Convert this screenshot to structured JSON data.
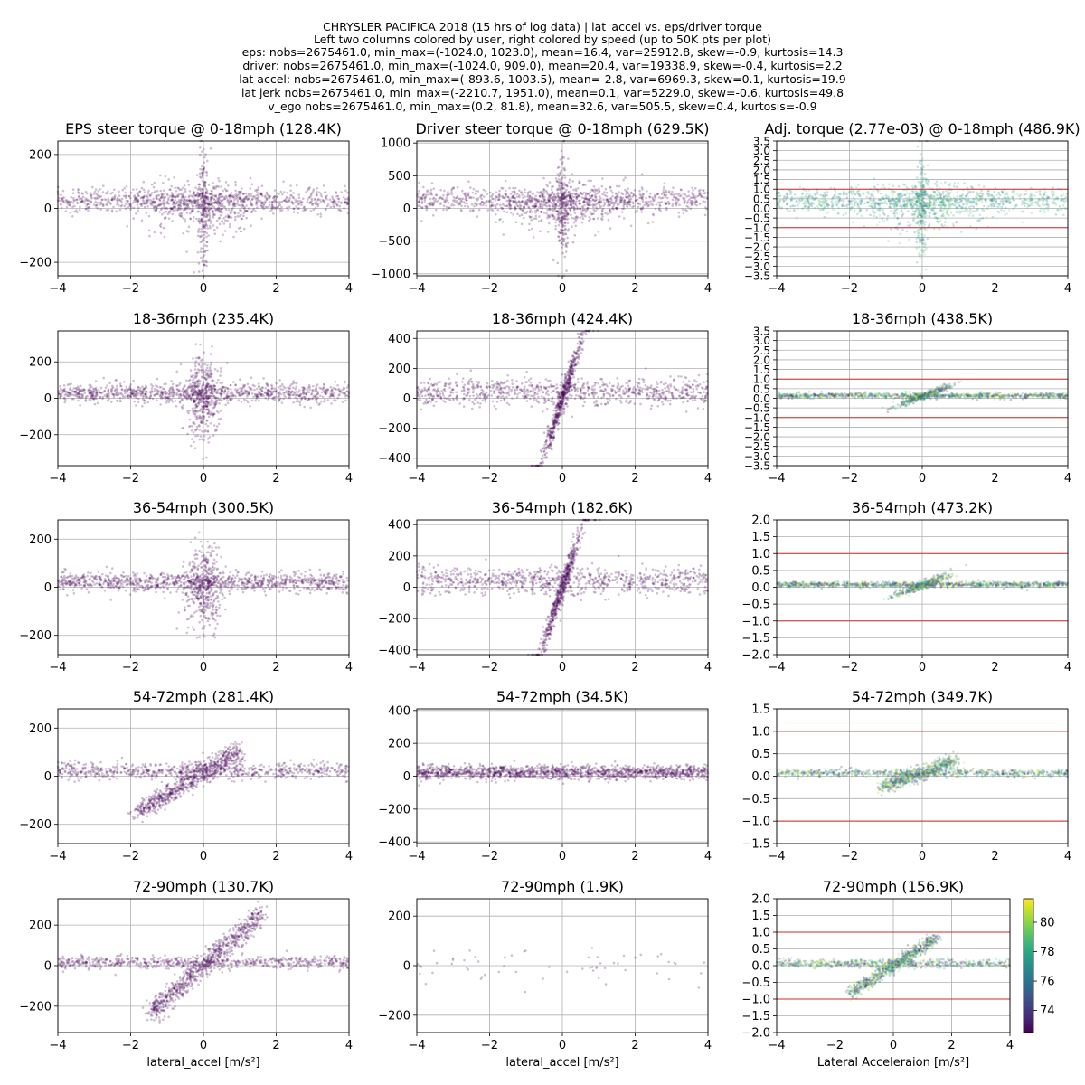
{
  "figure": {
    "header_lines": [
      "CHRYSLER PACIFICA 2018 (15 hrs of log data) | lat_accel vs. eps/driver torque",
      "Left two columns colored by user, right colored by speed (up to 50K pts per plot)",
      "eps: nobs=2675461.0, min_max=(-1024.0, 1023.0), mean=16.4, var=25912.8, skew=-0.9, kurtosis=14.3",
      "driver: nobs=2675461.0, min_max=(-1024.0, 909.0), mean=20.4, var=19338.9, skew=-0.4, kurtosis=2.2",
      "lat accel: nobs=2675461.0, min_max=(-893.6, 1003.5), mean=-2.8, var=6969.3, skew=0.1, kurtosis=19.9",
      "lat jerk nobs=2675461.0, min_max=(-2210.7, 1951.0), mean=0.1, var=5229.0, skew=-0.6, kurtosis=49.8",
      "v_ego nobs=2675461.0, min_max=(0.2, 81.8), mean=32.6, var=505.5, skew=0.4, kurtosis=-0.9"
    ],
    "colors": {
      "user": "#440154",
      "reference_line": "#d62728",
      "grid": "#b0b0b0"
    }
  },
  "colorbar": {
    "ticks": [
      "74",
      "76",
      "78",
      "80"
    ],
    "range": [
      72.5,
      81.6
    ],
    "colormap": "viridis"
  },
  "chart_data": [
    {
      "type": "scatter",
      "title": "EPS steer torque @ 0-18mph (128.4K)",
      "xlabel": "",
      "ylabel": "",
      "xlim": [
        -4,
        4
      ],
      "ylim": [
        -250,
        250
      ],
      "yticks": [
        -200,
        0,
        200
      ],
      "xticks": [
        -4,
        -2,
        0,
        2,
        4
      ],
      "color": "user",
      "pattern": "low"
    },
    {
      "type": "scatter",
      "title": "Driver steer torque @ 0-18mph (629.5K)",
      "xlabel": "",
      "ylabel": "",
      "xlim": [
        -4,
        4
      ],
      "ylim": [
        -1030,
        1030
      ],
      "yticks": [
        -1000,
        -500,
        0,
        500,
        1000
      ],
      "xticks": [
        -4,
        -2,
        0,
        2,
        4
      ],
      "color": "user",
      "pattern": "low"
    },
    {
      "type": "scatter",
      "title": "Adj. torque (2.77e-03) @ 0-18mph (486.9K)",
      "xlabel": "",
      "ylabel": "",
      "xlim": [
        -4,
        4
      ],
      "ylim": [
        -3.5,
        3.5
      ],
      "yticks": [
        "-3.5",
        "-3.0",
        "-2.5",
        "-2.0",
        "-1.5",
        "-1.0",
        "-0.5",
        "0.0",
        "0.5",
        "1.0",
        "1.5",
        "2.0",
        "2.5",
        "3.0",
        "3.5"
      ],
      "xticks": [
        -4,
        -2,
        0,
        2,
        4
      ],
      "hlines": [
        -1,
        1
      ],
      "color": "speed",
      "pattern": "low"
    },
    {
      "type": "scatter",
      "title": "18-36mph (235.4K)",
      "xlabel": "",
      "ylabel": "",
      "xlim": [
        -4,
        4
      ],
      "ylim": [
        -370,
        370
      ],
      "yticks": [
        -200,
        0,
        200
      ],
      "xticks": [
        -4,
        -2,
        0,
        2,
        4
      ],
      "color": "user",
      "pattern": "mid_eps"
    },
    {
      "type": "scatter",
      "title": "18-36mph (424.4K)",
      "xlabel": "",
      "ylabel": "",
      "xlim": [
        -4,
        4
      ],
      "ylim": [
        -450,
        450
      ],
      "yticks": [
        -400,
        -200,
        0,
        200,
        400
      ],
      "xticks": [
        -4,
        -2,
        0,
        2,
        4
      ],
      "color": "user",
      "pattern": "mid_drv"
    },
    {
      "type": "scatter",
      "title": "18-36mph (438.5K)",
      "xlabel": "",
      "ylabel": "",
      "xlim": [
        -4,
        4
      ],
      "ylim": [
        -3.5,
        3.5
      ],
      "yticks": [
        "-3.5",
        "-3.0",
        "-2.5",
        "-2.0",
        "-1.5",
        "-1.0",
        "-0.5",
        "0.0",
        "0.5",
        "1.0",
        "1.5",
        "2.0",
        "2.5",
        "3.0",
        "3.5"
      ],
      "xticks": [
        -4,
        -2,
        0,
        2,
        4
      ],
      "hlines": [
        -1,
        1
      ],
      "color": "speed",
      "pattern": "mid_adj"
    },
    {
      "type": "scatter",
      "title": "36-54mph (300.5K)",
      "xlabel": "",
      "ylabel": "",
      "xlim": [
        -4,
        4
      ],
      "ylim": [
        -280,
        280
      ],
      "yticks": [
        -200,
        0,
        200
      ],
      "xticks": [
        -4,
        -2,
        0,
        2,
        4
      ],
      "color": "user",
      "pattern": "mid_eps"
    },
    {
      "type": "scatter",
      "title": "36-54mph (182.6K)",
      "xlabel": "",
      "ylabel": "",
      "xlim": [
        -4,
        4
      ],
      "ylim": [
        -430,
        430
      ],
      "yticks": [
        -400,
        -200,
        0,
        200,
        400
      ],
      "xticks": [
        -4,
        -2,
        0,
        2,
        4
      ],
      "color": "user",
      "pattern": "mid_drv"
    },
    {
      "type": "scatter",
      "title": "36-54mph (473.2K)",
      "xlabel": "",
      "ylabel": "",
      "xlim": [
        -4,
        4
      ],
      "ylim": [
        -2,
        2
      ],
      "yticks": [
        "-2.0",
        "-1.5",
        "-1.0",
        "-0.5",
        "0.0",
        "0.5",
        "1.0",
        "1.5",
        "2.0"
      ],
      "xticks": [
        -4,
        -2,
        0,
        2,
        4
      ],
      "hlines": [
        -1,
        1
      ],
      "color": "speed",
      "pattern": "mid_adj"
    },
    {
      "type": "scatter",
      "title": "54-72mph (281.4K)",
      "xlabel": "",
      "ylabel": "",
      "xlim": [
        -4,
        4
      ],
      "ylim": [
        -280,
        280
      ],
      "yticks": [
        -200,
        0,
        200
      ],
      "xticks": [
        -4,
        -2,
        0,
        2,
        4
      ],
      "color": "user",
      "pattern": "high_eps"
    },
    {
      "type": "scatter",
      "title": "54-72mph (34.5K)",
      "xlabel": "",
      "ylabel": "",
      "xlim": [
        -4,
        4
      ],
      "ylim": [
        -410,
        410
      ],
      "yticks": [
        -400,
        -200,
        0,
        200,
        400
      ],
      "xticks": [
        -4,
        -2,
        0,
        2,
        4
      ],
      "color": "user",
      "pattern": "band"
    },
    {
      "type": "scatter",
      "title": "54-72mph (349.7K)",
      "xlabel": "",
      "ylabel": "",
      "xlim": [
        -4,
        4
      ],
      "ylim": [
        -1.5,
        1.5
      ],
      "yticks": [
        "-1.5",
        "-1.0",
        "-0.5",
        "0.0",
        "0.5",
        "1.0",
        "1.5"
      ],
      "xticks": [
        -4,
        -2,
        0,
        2,
        4
      ],
      "hlines": [
        -1,
        1
      ],
      "color": "speed",
      "pattern": "high_adj"
    },
    {
      "type": "scatter",
      "title": "72-90mph (130.7K)",
      "xlabel": "lateral_accel [m/s²]",
      "ylabel": "",
      "xlim": [
        -4,
        4
      ],
      "ylim": [
        -330,
        330
      ],
      "yticks": [
        -200,
        0,
        200
      ],
      "xticks": [
        -4,
        -2,
        0,
        2,
        4
      ],
      "color": "user",
      "pattern": "vhigh_eps"
    },
    {
      "type": "scatter",
      "title": "72-90mph (1.9K)",
      "xlabel": "lateral_accel [m/s²]",
      "ylabel": "",
      "xlim": [
        -4,
        4
      ],
      "ylim": [
        -270,
        270
      ],
      "yticks": [
        -200,
        0,
        200
      ],
      "xticks": [
        -4,
        -2,
        0,
        2,
        4
      ],
      "color": "user",
      "pattern": "sparse"
    },
    {
      "type": "scatter",
      "title": "72-90mph (156.9K)",
      "xlabel": "Lateral Acceleraion [m/s²]",
      "ylabel": "",
      "xlim": [
        -4,
        4
      ],
      "ylim": [
        -2,
        2
      ],
      "yticks": [
        "-2.0",
        "-1.5",
        "-1.0",
        "-0.5",
        "0.0",
        "0.5",
        "1.0",
        "1.5",
        "2.0"
      ],
      "xticks": [
        -4,
        -2,
        0,
        2,
        4
      ],
      "hlines": [
        -1,
        1
      ],
      "color": "speed",
      "pattern": "vhigh_adj"
    }
  ]
}
